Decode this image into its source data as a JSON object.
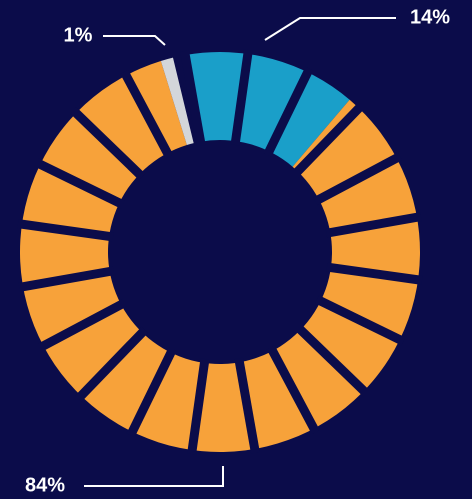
{
  "chart_data": {
    "type": "donut",
    "values": [
      14,
      84,
      1
    ],
    "value_labels": [
      "14%",
      "84%",
      "1%"
    ],
    "colors": [
      "#1a9fc9",
      "#f7a23a",
      "#d3d6da"
    ]
  }
}
